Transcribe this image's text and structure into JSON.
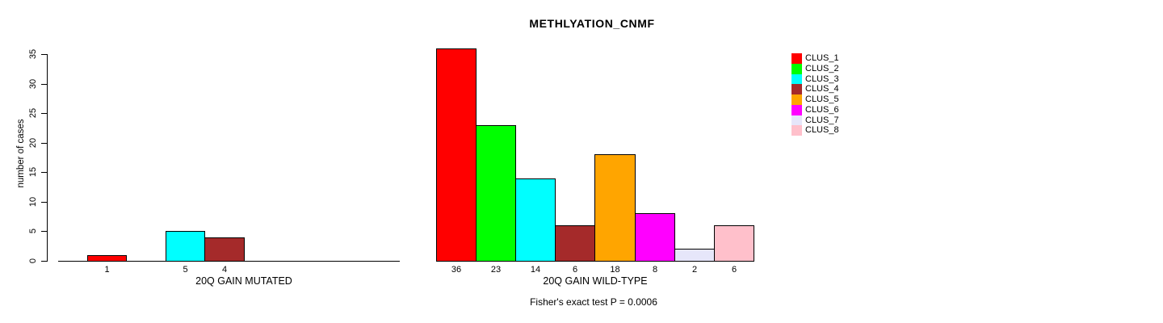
{
  "chart_data": {
    "type": "bar",
    "title": "METHLYATION_CNMF",
    "ylabel": "number of cases",
    "ylim": [
      0,
      35
    ],
    "y_ticks": [
      0,
      5,
      10,
      15,
      20,
      25,
      30,
      35
    ],
    "grid": false,
    "legend_position": "right",
    "clusters": [
      {
        "name": "CLUS_1",
        "color": "#FF0000"
      },
      {
        "name": "CLUS_2",
        "color": "#00FF00"
      },
      {
        "name": "CLUS_3",
        "color": "#00FFFF"
      },
      {
        "name": "CLUS_4",
        "color": "#A52A2A"
      },
      {
        "name": "CLUS_5",
        "color": "#FFA500"
      },
      {
        "name": "CLUS_6",
        "color": "#FF00FF"
      },
      {
        "name": "CLUS_7",
        "color": "#E6E6FA"
      },
      {
        "name": "CLUS_8",
        "color": "#FFC0CB"
      }
    ],
    "groups": [
      {
        "xlabel": "20Q GAIN MUTATED",
        "categories": [
          "CLUS_1",
          "CLUS_2",
          "CLUS_3",
          "CLUS_4",
          "CLUS_5",
          "CLUS_6",
          "CLUS_7",
          "CLUS_8"
        ],
        "values": [
          1,
          0,
          5,
          4,
          0,
          0,
          0,
          0
        ],
        "bar_labels": [
          "1",
          "",
          "5",
          "4",
          "",
          "",
          "",
          ""
        ]
      },
      {
        "xlabel": "20Q GAIN WILD-TYPE",
        "categories": [
          "CLUS_1",
          "CLUS_2",
          "CLUS_3",
          "CLUS_4",
          "CLUS_5",
          "CLUS_6",
          "CLUS_7",
          "CLUS_8"
        ],
        "values": [
          36,
          23,
          14,
          6,
          18,
          8,
          2,
          6
        ],
        "bar_labels": [
          "36",
          "23",
          "14",
          "6",
          "18",
          "8",
          "2",
          "6"
        ]
      }
    ],
    "annotation": "Fisher's exact test P = 0.0006"
  }
}
